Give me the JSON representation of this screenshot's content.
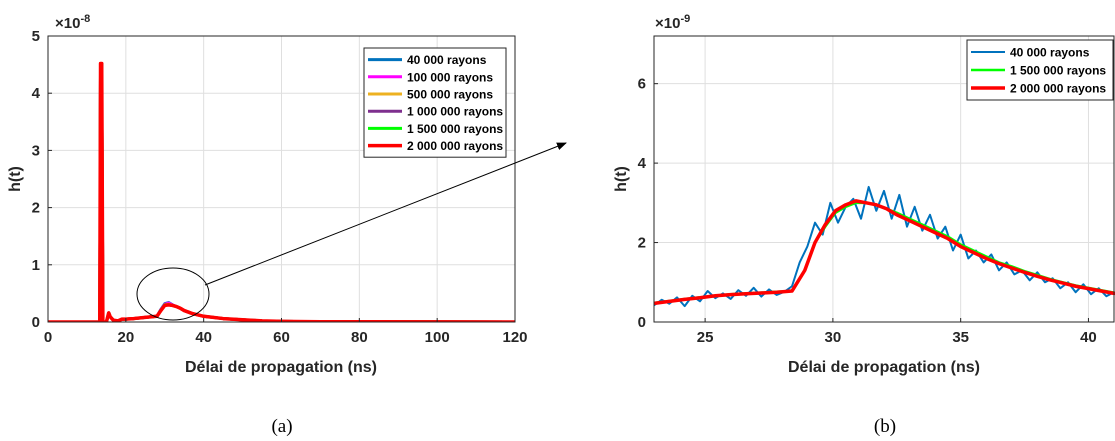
{
  "chart_data": [
    {
      "type": "line",
      "caption": "(a)",
      "xlabel": "Délai de propagation (ns)",
      "ylabel": "h(t)",
      "y_exponent": "×10",
      "y_exponent_power": "-8",
      "xlim": [
        0,
        120
      ],
      "ylim": [
        0,
        5
      ],
      "xticks": [
        0,
        20,
        40,
        60,
        80,
        100,
        120
      ],
      "yticks": [
        0,
        1,
        2,
        3,
        4,
        5
      ],
      "grid": true,
      "legend_position": "top-right",
      "series": [
        {
          "name": "40 000 rayons",
          "color": "#0072BD",
          "width": 3,
          "x": [
            0,
            13.3,
            13.5,
            13.8,
            14.1,
            15,
            15.6,
            16,
            16.8,
            18,
            19,
            20,
            22,
            25,
            28,
            29,
            30,
            31,
            32,
            33,
            34,
            35,
            37,
            40,
            45,
            50,
            55,
            60,
            70,
            120
          ],
          "y": [
            0,
            0,
            4.52,
            4.52,
            0,
            0,
            0.16,
            0.09,
            0.03,
            0.02,
            0.05,
            0.05,
            0.06,
            0.08,
            0.1,
            0.22,
            0.32,
            0.34,
            0.3,
            0.27,
            0.24,
            0.2,
            0.15,
            0.1,
            0.06,
            0.04,
            0.02,
            0.01,
            0.005,
            0
          ]
        },
        {
          "name": "100 000 rayons",
          "color": "#FF00FF",
          "width": 3,
          "x": [
            0,
            13.3,
            13.5,
            13.8,
            14.1,
            15,
            15.6,
            16,
            16.8,
            18,
            19,
            20,
            22,
            25,
            28,
            29,
            30,
            31,
            32,
            33,
            34,
            35,
            37,
            40,
            45,
            50,
            55,
            60,
            70,
            120
          ],
          "y": [
            0,
            0,
            4.52,
            4.52,
            0,
            0,
            0.16,
            0.09,
            0.03,
            0.02,
            0.05,
            0.05,
            0.06,
            0.08,
            0.1,
            0.21,
            0.31,
            0.33,
            0.3,
            0.27,
            0.24,
            0.2,
            0.15,
            0.1,
            0.06,
            0.04,
            0.02,
            0.01,
            0.005,
            0
          ]
        },
        {
          "name": "500 000 rayons",
          "color": "#EDB120",
          "width": 3,
          "x": [
            0,
            13.3,
            13.5,
            13.8,
            14.1,
            15,
            15.6,
            16,
            16.8,
            18,
            19,
            20,
            22,
            25,
            28,
            29,
            30,
            31,
            32,
            33,
            34,
            35,
            37,
            40,
            45,
            50,
            55,
            60,
            70,
            120
          ],
          "y": [
            0,
            0,
            4.52,
            4.52,
            0,
            0,
            0.16,
            0.09,
            0.03,
            0.02,
            0.05,
            0.05,
            0.06,
            0.08,
            0.1,
            0.2,
            0.3,
            0.31,
            0.29,
            0.27,
            0.24,
            0.2,
            0.15,
            0.1,
            0.06,
            0.04,
            0.02,
            0.01,
            0.005,
            0
          ]
        },
        {
          "name": "1 000 000 rayons",
          "color": "#7E2F8E",
          "width": 3,
          "x": [
            0,
            13.3,
            13.5,
            13.8,
            14.1,
            15,
            15.6,
            16,
            16.8,
            18,
            19,
            20,
            22,
            25,
            28,
            29,
            30,
            31,
            32,
            33,
            34,
            35,
            37,
            40,
            45,
            50,
            55,
            60,
            70,
            120
          ],
          "y": [
            0,
            0,
            4.52,
            4.52,
            0,
            0,
            0.16,
            0.09,
            0.03,
            0.02,
            0.05,
            0.05,
            0.06,
            0.08,
            0.1,
            0.2,
            0.3,
            0.3,
            0.29,
            0.27,
            0.24,
            0.2,
            0.15,
            0.1,
            0.06,
            0.04,
            0.02,
            0.01,
            0.005,
            0
          ]
        },
        {
          "name": "1 500 000 rayons",
          "color": "#00FF00",
          "width": 3,
          "x": [
            0,
            13.3,
            13.5,
            13.8,
            14.1,
            15,
            15.6,
            16,
            16.8,
            18,
            19,
            20,
            22,
            25,
            28,
            29,
            30,
            31,
            32,
            33,
            34,
            35,
            37,
            40,
            45,
            50,
            55,
            60,
            70,
            120
          ],
          "y": [
            0,
            0,
            4.52,
            4.52,
            0,
            0,
            0.16,
            0.09,
            0.03,
            0.02,
            0.05,
            0.05,
            0.06,
            0.08,
            0.1,
            0.2,
            0.3,
            0.3,
            0.29,
            0.27,
            0.24,
            0.2,
            0.15,
            0.1,
            0.06,
            0.04,
            0.02,
            0.01,
            0.005,
            0
          ]
        },
        {
          "name": "2 000 000 rayons",
          "color": "#FF0000",
          "width": 3.5,
          "x": [
            0,
            13.3,
            13.5,
            13.8,
            14.1,
            15,
            15.6,
            16,
            16.8,
            18,
            19,
            20,
            22,
            25,
            28,
            29,
            30,
            31,
            32,
            33,
            34,
            35,
            37,
            40,
            45,
            50,
            55,
            60,
            70,
            120
          ],
          "y": [
            0,
            0,
            4.52,
            4.52,
            0,
            0,
            0.16,
            0.09,
            0.03,
            0.02,
            0.05,
            0.05,
            0.06,
            0.08,
            0.1,
            0.2,
            0.29,
            0.3,
            0.29,
            0.27,
            0.24,
            0.2,
            0.15,
            0.1,
            0.06,
            0.04,
            0.02,
            0.01,
            0.005,
            0
          ]
        }
      ]
    },
    {
      "type": "line",
      "caption": "(b)",
      "xlabel": "Délai de propagation (ns)",
      "ylabel": "h(t)",
      "y_exponent": "×10",
      "y_exponent_power": "-9",
      "xlim": [
        23,
        41
      ],
      "ylim": [
        0,
        7.2
      ],
      "xticks": [
        25,
        30,
        35,
        40
      ],
      "yticks": [
        0,
        2,
        4,
        6
      ],
      "grid": true,
      "legend_position": "top-right",
      "series": [
        {
          "name": "40 000 rayons",
          "color": "#0072BD",
          "width": 2,
          "x": [
            23,
            23.3,
            23.6,
            23.9,
            24.2,
            24.5,
            24.8,
            25.1,
            25.4,
            25.7,
            26,
            26.3,
            26.6,
            26.9,
            27.2,
            27.5,
            27.8,
            28.1,
            28.4,
            28.7,
            29,
            29.3,
            29.6,
            29.9,
            30.2,
            30.5,
            30.8,
            31.1,
            31.4,
            31.7,
            32,
            32.3,
            32.6,
            32.9,
            33.2,
            33.5,
            33.8,
            34.1,
            34.4,
            34.7,
            35,
            35.3,
            35.6,
            35.9,
            36.2,
            36.5,
            36.8,
            37.1,
            37.4,
            37.7,
            38,
            38.3,
            38.6,
            38.9,
            39.2,
            39.5,
            39.8,
            40.1,
            40.4,
            40.7,
            41
          ],
          "y": [
            0.42,
            0.56,
            0.46,
            0.62,
            0.4,
            0.66,
            0.52,
            0.78,
            0.6,
            0.72,
            0.58,
            0.8,
            0.66,
            0.86,
            0.64,
            0.82,
            0.68,
            0.76,
            0.9,
            1.5,
            1.9,
            2.5,
            2.2,
            3.0,
            2.5,
            2.9,
            3.1,
            2.6,
            3.4,
            2.8,
            3.3,
            2.6,
            3.2,
            2.4,
            2.9,
            2.3,
            2.7,
            2.1,
            2.4,
            1.8,
            2.2,
            1.6,
            1.8,
            1.5,
            1.7,
            1.3,
            1.5,
            1.2,
            1.3,
            1.05,
            1.25,
            1.0,
            1.1,
            0.85,
            1.0,
            0.75,
            0.95,
            0.7,
            0.85,
            0.65,
            0.75
          ]
        },
        {
          "name": "1 500 000 rayons",
          "color": "#00FF00",
          "width": 2.5,
          "x": [
            23,
            23.6,
            24.2,
            24.8,
            25.4,
            26,
            26.6,
            27.2,
            27.8,
            28.4,
            28.9,
            29.3,
            29.7,
            30.1,
            30.5,
            30.9,
            31.3,
            31.7,
            32.1,
            32.5,
            33,
            33.5,
            34,
            34.5,
            35,
            35.5,
            36,
            36.5,
            37,
            37.5,
            38,
            38.5,
            39,
            39.5,
            40,
            40.5,
            41
          ],
          "y": [
            0.48,
            0.53,
            0.58,
            0.62,
            0.66,
            0.7,
            0.72,
            0.74,
            0.76,
            0.78,
            1.3,
            2.0,
            2.4,
            2.75,
            2.9,
            3.0,
            3.0,
            2.95,
            2.85,
            2.75,
            2.6,
            2.45,
            2.3,
            2.15,
            1.95,
            1.8,
            1.65,
            1.5,
            1.4,
            1.28,
            1.18,
            1.08,
            1.0,
            0.92,
            0.86,
            0.8,
            0.74
          ]
        },
        {
          "name": "2 000 000 rayons",
          "color": "#FF0000",
          "width": 3.5,
          "x": [
            23,
            23.6,
            24.2,
            24.8,
            25.4,
            26,
            26.6,
            27.2,
            27.8,
            28.4,
            28.9,
            29.3,
            29.7,
            30.1,
            30.5,
            30.9,
            31.3,
            31.7,
            32.1,
            32.5,
            33,
            33.5,
            34,
            34.5,
            35,
            35.5,
            36,
            36.5,
            37,
            37.5,
            38,
            38.5,
            39,
            39.5,
            40,
            40.5,
            41
          ],
          "y": [
            0.47,
            0.52,
            0.57,
            0.61,
            0.66,
            0.69,
            0.71,
            0.73,
            0.75,
            0.78,
            1.3,
            2.0,
            2.45,
            2.8,
            2.95,
            3.05,
            3.0,
            2.95,
            2.85,
            2.7,
            2.55,
            2.4,
            2.25,
            2.1,
            1.9,
            1.75,
            1.6,
            1.47,
            1.36,
            1.25,
            1.15,
            1.06,
            0.98,
            0.9,
            0.84,
            0.78,
            0.72
          ]
        }
      ]
    }
  ]
}
